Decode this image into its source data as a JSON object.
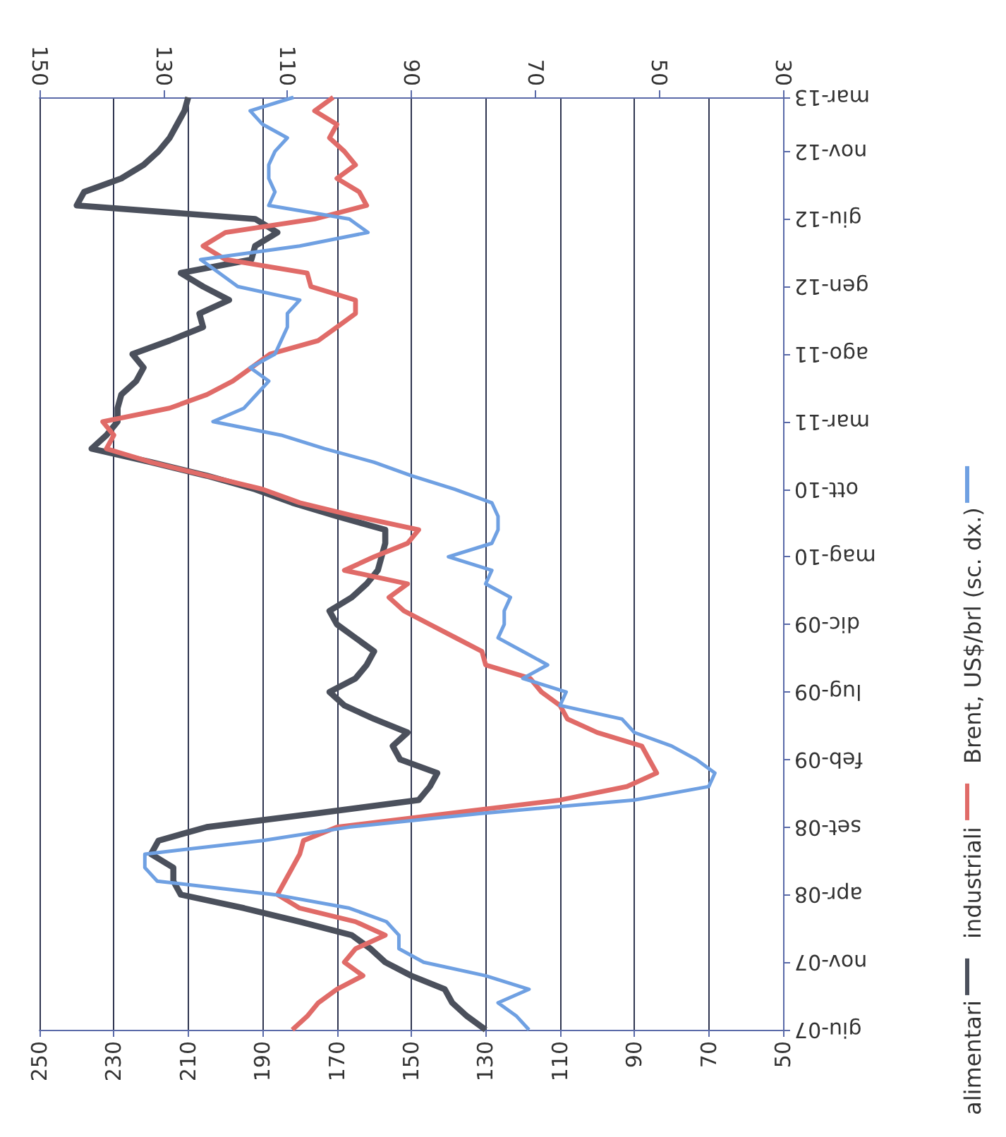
{
  "chart_data": {
    "type": "line",
    "orientation": "horizontal",
    "categories": [
      "mar-13",
      null,
      null,
      null,
      "nov-12",
      null,
      null,
      null,
      null,
      "giu-12",
      null,
      null,
      null,
      null,
      "gen-12",
      null,
      null,
      null,
      null,
      "ago-11",
      null,
      null,
      null,
      null,
      "mar-11",
      null,
      null,
      null,
      null,
      "ott-10",
      null,
      null,
      null,
      null,
      "mag-10",
      null,
      null,
      null,
      null,
      "dic-09",
      null,
      null,
      null,
      null,
      "lug-09",
      null,
      null,
      null,
      null,
      "feb-09",
      null,
      null,
      null,
      null,
      "set-08",
      null,
      null,
      null,
      null,
      "apr-08",
      null,
      null,
      null,
      null,
      "nov-07",
      null,
      null,
      null,
      null,
      "giu-07"
    ],
    "series": [
      {
        "name": "alimentari",
        "color": "#4b505c",
        "values": [
          210,
          211,
          213,
          215,
          218,
          222,
          228,
          238,
          240,
          192,
          186,
          192,
          193,
          212,
          206,
          199,
          207,
          206,
          215,
          225,
          222,
          224,
          228,
          229,
          229,
          232,
          236,
          220,
          205,
          192,
          182,
          170,
          157,
          157,
          158,
          159,
          162,
          166,
          172,
          170,
          165,
          160,
          162,
          165,
          172,
          168,
          160,
          151,
          155,
          153,
          143,
          145,
          148,
          176,
          205,
          218,
          220,
          214,
          214,
          212,
          195,
          180,
          166,
          161,
          157,
          150,
          141,
          139,
          135,
          130
        ]
      },
      {
        "name": "industriali",
        "color": "#e06b68",
        "values": [
          171,
          176,
          170,
          172,
          168,
          165,
          170,
          164,
          162,
          176,
          200,
          206,
          200,
          178,
          177,
          165,
          165,
          170,
          175,
          188,
          193,
          198,
          205,
          215,
          233,
          230,
          232,
          220,
          205,
          190,
          180,
          165,
          148,
          151,
          160,
          168,
          151,
          156,
          152,
          145,
          138,
          131,
          130,
          118,
          115,
          110,
          108,
          100,
          88,
          86,
          84,
          92,
          110,
          140,
          170,
          179,
          180,
          182,
          184,
          186,
          180,
          165,
          157,
          165,
          168,
          163,
          170,
          175,
          178,
          182
        ]
      },
      {
        "name": "Brent, US$/brl (sc. dx.)",
        "color": "#6fa0e2",
        "axis": "x2",
        "values": [
          109,
          116,
          114,
          110,
          112,
          113,
          113,
          112,
          113,
          100,
          97,
          108,
          124,
          121,
          118,
          108,
          110,
          110,
          111,
          112,
          116,
          113,
          115,
          117,
          122,
          111,
          104,
          96,
          90,
          83,
          77,
          76,
          76,
          77,
          84,
          77,
          78,
          74,
          75,
          75,
          76,
          72,
          68,
          72,
          65,
          66,
          56,
          54,
          48,
          44,
          41,
          42,
          54,
          79,
          100,
          114,
          133,
          133,
          131,
          112,
          100,
          94,
          92,
          92,
          88,
          78,
          71,
          76,
          73,
          71
        ]
      }
    ],
    "xlim": [
      250,
      50
    ],
    "xticks": [
      250,
      230,
      210,
      190,
      170,
      150,
      130,
      110,
      90,
      70,
      50
    ],
    "x2lim": [
      150,
      30
    ],
    "x2ticks": [
      150,
      130,
      110,
      90,
      70,
      50,
      30
    ],
    "grid": "x",
    "legend": "right",
    "marker": "none"
  }
}
